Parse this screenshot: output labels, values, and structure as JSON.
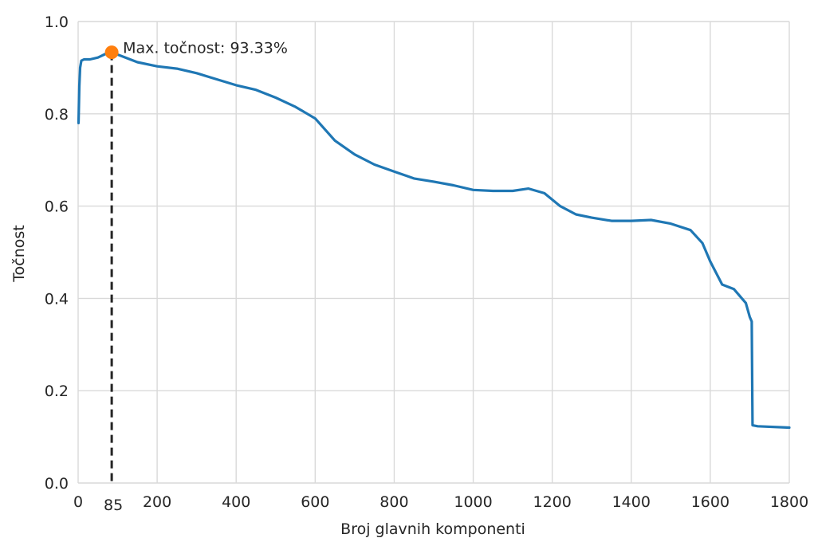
{
  "chart_data": {
    "type": "line",
    "title": "",
    "xlabel": "Broj glavnih komponenti",
    "ylabel": "Točnost",
    "xlim": [
      0,
      1800
    ],
    "ylim": [
      0.0,
      1.0
    ],
    "grid": true,
    "x_ticks": [
      "0",
      "200",
      "400",
      "600",
      "800",
      "1000",
      "1200",
      "1400",
      "1600",
      "1800"
    ],
    "x_tick_values": [
      0,
      200,
      400,
      600,
      800,
      1000,
      1200,
      1400,
      1600,
      1800
    ],
    "y_ticks": [
      "0.0",
      "0.2",
      "0.4",
      "0.6",
      "0.8",
      "1.0"
    ],
    "y_tick_values": [
      0.0,
      0.2,
      0.4,
      0.6,
      0.8,
      1.0
    ],
    "series": [
      {
        "color": "#1f77b4",
        "points": [
          [
            1,
            0.78
          ],
          [
            3,
            0.86
          ],
          [
            5,
            0.9
          ],
          [
            8,
            0.915
          ],
          [
            15,
            0.918
          ],
          [
            30,
            0.918
          ],
          [
            50,
            0.922
          ],
          [
            70,
            0.93
          ],
          [
            85,
            0.9333
          ],
          [
            110,
            0.925
          ],
          [
            150,
            0.912
          ],
          [
            200,
            0.903
          ],
          [
            250,
            0.898
          ],
          [
            300,
            0.888
          ],
          [
            350,
            0.875
          ],
          [
            400,
            0.862
          ],
          [
            450,
            0.852
          ],
          [
            500,
            0.835
          ],
          [
            550,
            0.815
          ],
          [
            600,
            0.79
          ],
          [
            650,
            0.742
          ],
          [
            700,
            0.712
          ],
          [
            750,
            0.69
          ],
          [
            800,
            0.675
          ],
          [
            850,
            0.66
          ],
          [
            900,
            0.653
          ],
          [
            950,
            0.645
          ],
          [
            1000,
            0.635
          ],
          [
            1050,
            0.633
          ],
          [
            1100,
            0.633
          ],
          [
            1140,
            0.638
          ],
          [
            1180,
            0.628
          ],
          [
            1220,
            0.6
          ],
          [
            1260,
            0.582
          ],
          [
            1300,
            0.575
          ],
          [
            1350,
            0.568
          ],
          [
            1400,
            0.568
          ],
          [
            1450,
            0.57
          ],
          [
            1500,
            0.562
          ],
          [
            1550,
            0.548
          ],
          [
            1580,
            0.52
          ],
          [
            1600,
            0.48
          ],
          [
            1630,
            0.43
          ],
          [
            1660,
            0.42
          ],
          [
            1690,
            0.39
          ],
          [
            1700,
            0.36
          ],
          [
            1705,
            0.35
          ],
          [
            1707,
            0.125
          ],
          [
            1720,
            0.123
          ],
          [
            1800,
            0.12
          ]
        ]
      }
    ],
    "max_point": {
      "x": 85,
      "y": 0.9333,
      "x_label": "85",
      "label": "Max. točnost: 93.33%",
      "color": "#ff7f0e",
      "line_color": "#262626"
    }
  }
}
